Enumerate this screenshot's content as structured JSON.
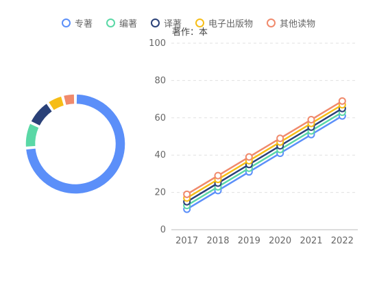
{
  "chart_data": [
    {
      "type": "pie",
      "donut": true,
      "categories": [
        "专著",
        "编著",
        "译著",
        "电子出版物",
        "其他读物"
      ],
      "values": [
        70,
        8,
        8,
        5,
        4
      ],
      "colors": [
        "#5b8ff9",
        "#5ad8a6",
        "#2a4178",
        "#f6bd16",
        "#f08a6c"
      ]
    },
    {
      "type": "line",
      "x": [
        "2017",
        "2018",
        "2019",
        "2020",
        "2021",
        "2022"
      ],
      "ylabel": "著作：本",
      "ylim": [
        0,
        100
      ],
      "yticks": [
        0,
        20,
        40,
        60,
        80,
        100
      ],
      "grid": true,
      "legend": "top-center",
      "series": [
        {
          "name": "专著",
          "color": "#5b8ff9",
          "values": [
            11,
            21,
            31,
            41,
            51,
            61
          ]
        },
        {
          "name": "编著",
          "color": "#5ad8a6",
          "values": [
            13,
            23,
            33,
            43,
            53,
            63
          ]
        },
        {
          "name": "译著",
          "color": "#2a4178",
          "values": [
            15,
            25,
            35,
            45,
            55,
            65
          ]
        },
        {
          "name": "电子出版物",
          "color": "#f6bd16",
          "values": [
            17,
            27,
            37,
            47,
            57,
            67
          ]
        },
        {
          "name": "其他读物",
          "color": "#f08a6c",
          "values": [
            19,
            29,
            39,
            49,
            59,
            69
          ]
        }
      ]
    }
  ]
}
